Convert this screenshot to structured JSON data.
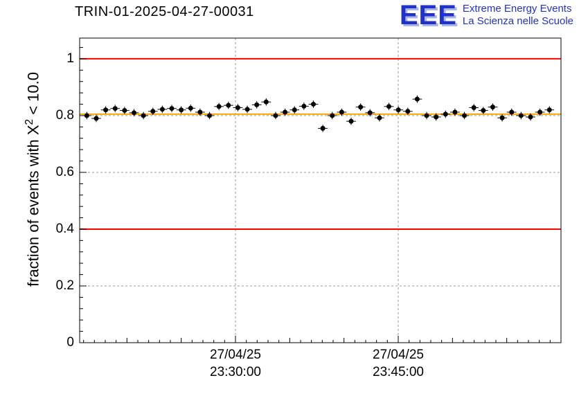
{
  "title": "TRIN-01-2025-04-27-00031",
  "logo": {
    "wordmark": "EEE",
    "line1": "Extreme Energy Events",
    "line2": "La Scienza nelle Scuole",
    "color": "#2132c8"
  },
  "chart_data": {
    "type": "scatter",
    "title": "TRIN-01-2025-04-27-00031",
    "ylabel": "fraction of events with X^2 < 10.0",
    "ylabel_parts": {
      "prefix": "fraction of events with X",
      "sup": "2",
      "suffix": " < 10.0"
    },
    "ylim": [
      0,
      1.073
    ],
    "yticks": [
      0,
      0.2,
      0.4,
      0.6,
      0.8,
      1
    ],
    "ytick_labels": [
      "0",
      "0.2",
      "0.4",
      "0.6",
      "0.8",
      "1"
    ],
    "x_domain_minutes": [
      0.64,
      45.0
    ],
    "xticks": [
      {
        "minute": 15,
        "label_date": "27/04/25",
        "label_time": "23:30:00"
      },
      {
        "minute": 30,
        "label_date": "27/04/25",
        "label_time": "23:45:00"
      }
    ],
    "grid": true,
    "legend": "none",
    "ref_lines": [
      {
        "y": 1.0,
        "color": "#ff0000"
      },
      {
        "y": 0.4,
        "color": "#ff0000"
      },
      {
        "y": 0.805,
        "color": "#ffa500"
      }
    ],
    "marker_color": "#000000",
    "point_error_y": 0.013,
    "point_error_x": 0.44,
    "points": [
      [
        1.3,
        0.8
      ],
      [
        2.17,
        0.79
      ],
      [
        3.04,
        0.82
      ],
      [
        3.91,
        0.825
      ],
      [
        4.78,
        0.818
      ],
      [
        5.65,
        0.81
      ],
      [
        6.52,
        0.8
      ],
      [
        7.39,
        0.815
      ],
      [
        8.26,
        0.822
      ],
      [
        9.13,
        0.825
      ],
      [
        10.0,
        0.82
      ],
      [
        10.87,
        0.826
      ],
      [
        11.74,
        0.812
      ],
      [
        12.61,
        0.8
      ],
      [
        13.48,
        0.832
      ],
      [
        14.35,
        0.836
      ],
      [
        15.22,
        0.828
      ],
      [
        16.09,
        0.822
      ],
      [
        16.96,
        0.838
      ],
      [
        17.83,
        0.848
      ],
      [
        18.7,
        0.8
      ],
      [
        19.57,
        0.812
      ],
      [
        20.44,
        0.82
      ],
      [
        21.31,
        0.833
      ],
      [
        22.18,
        0.84
      ],
      [
        23.05,
        0.755
      ],
      [
        23.92,
        0.8
      ],
      [
        24.79,
        0.812
      ],
      [
        25.66,
        0.78
      ],
      [
        26.53,
        0.83
      ],
      [
        27.4,
        0.81
      ],
      [
        28.27,
        0.792
      ],
      [
        29.14,
        0.832
      ],
      [
        30.01,
        0.82
      ],
      [
        30.88,
        0.815
      ],
      [
        31.75,
        0.858
      ],
      [
        32.62,
        0.8
      ],
      [
        33.49,
        0.795
      ],
      [
        34.36,
        0.805
      ],
      [
        35.23,
        0.812
      ],
      [
        36.1,
        0.8
      ],
      [
        36.97,
        0.828
      ],
      [
        37.84,
        0.818
      ],
      [
        38.71,
        0.83
      ],
      [
        39.58,
        0.792
      ],
      [
        40.45,
        0.812
      ],
      [
        41.32,
        0.8
      ],
      [
        42.19,
        0.795
      ],
      [
        43.06,
        0.812
      ],
      [
        43.93,
        0.82
      ]
    ]
  }
}
